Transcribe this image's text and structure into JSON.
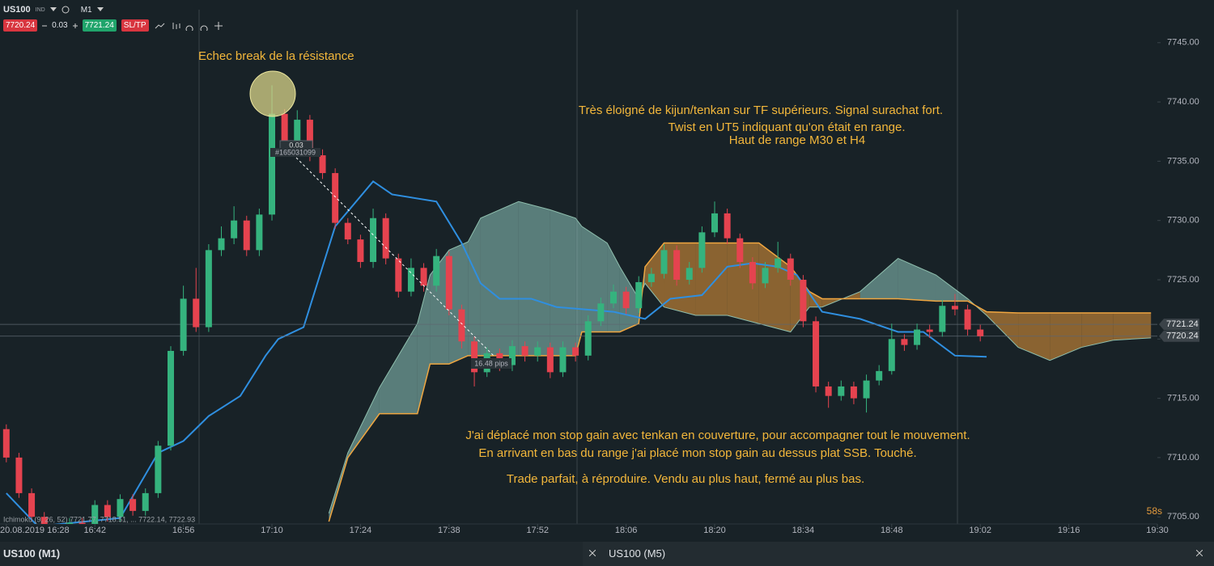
{
  "toolbar": {
    "symbol": "US100",
    "instrument_type": "IND",
    "timeframe": "M1",
    "bid": "7720.24",
    "volume": "0.03",
    "ask": "7721.24",
    "sltp": "SL/TP"
  },
  "chart_data": {
    "type": "candlestick",
    "annotations": [
      "Echec break de la résistance",
      "Très éloigné de kijun/tenkan sur TF supérieurs. Signal surachat fort.",
      "Twist en UT5 indiquant qu'on était en range.",
      "Haut de range M30 et H4",
      "J'ai déplacé mon stop gain avec tenkan en couverture, pour accompagner tout le mouvement.",
      "En arrivant en bas du range j'ai placé mon stop gain au dessus plat SSB. Touché.",
      "Trade parfait, à réproduire. Vendu au plus haut, fermé au plus bas."
    ],
    "up_color": "#35b37e",
    "down_color": "#e5434f",
    "kijun_color": "#2f8fe0",
    "span_a_color": "#8fbfae",
    "span_b_color": "#f0a640",
    "bull_cloud_color": "#8fc9c0",
    "bear_cloud_color": "#b07a35",
    "xlim": [
      "16:27",
      "19:30"
    ],
    "xticks": [
      "20.08.2019 16:28",
      "16:42",
      "16:56",
      "17:10",
      "17:24",
      "17:38",
      "17:52",
      "18:06",
      "18:20",
      "18:34",
      "18:48",
      "19:02",
      "19:16",
      "19:30"
    ],
    "ylim": [
      7704.4,
      7748.6
    ],
    "yticks": [
      {
        "value": 7705,
        "label": "7705.00"
      },
      {
        "value": 7710,
        "label": "7710.00"
      },
      {
        "value": 7715,
        "label": "7715.00"
      },
      {
        "value": 7720,
        "label": "7720.00"
      },
      {
        "value": 7725,
        "label": "7725.00"
      },
      {
        "value": 7730,
        "label": "7730.00"
      },
      {
        "value": 7735,
        "label": "7735.00"
      },
      {
        "value": 7740,
        "label": "7740.00"
      },
      {
        "value": 7745,
        "label": "7745.00"
      }
    ],
    "price_lines": [
      7721.24,
      7720.24
    ],
    "candles": [
      {
        "time": "16:28",
        "open": 7712.4,
        "high": 7712.8,
        "low": 7709.6,
        "close": 7710
      },
      {
        "time": "16:30",
        "open": 7710,
        "high": 7710.4,
        "low": 7706.6,
        "close": 7707
      },
      {
        "time": "16:32",
        "open": 7707,
        "high": 7707.4,
        "low": 7704.6,
        "close": 7705
      },
      {
        "time": "16:34",
        "open": 7705,
        "high": 7705.4,
        "low": 7703.6,
        "close": 7704
      },
      {
        "time": "16:36",
        "open": 7704,
        "high": 7704.4,
        "low": 7703.4,
        "close": 7703.8
      },
      {
        "time": "16:38",
        "open": 7703.8,
        "high": 7704.9,
        "low": 7703.4,
        "close": 7704.5
      },
      {
        "time": "16:40",
        "open": 7704.5,
        "high": 7704.9,
        "low": 7703.6,
        "close": 7704
      },
      {
        "time": "16:42",
        "open": 7704,
        "high": 7706.4,
        "low": 7703.6,
        "close": 7706
      },
      {
        "time": "16:44",
        "open": 7706,
        "high": 7706.4,
        "low": 7704.6,
        "close": 7705
      },
      {
        "time": "16:46",
        "open": 7705,
        "high": 7706.9,
        "low": 7704.6,
        "close": 7706.5
      },
      {
        "time": "16:48",
        "open": 7706.5,
        "high": 7706.9,
        "low": 7705.1,
        "close": 7705.5
      },
      {
        "time": "16:50",
        "open": 7705.5,
        "high": 7707.4,
        "low": 7705.1,
        "close": 7707
      },
      {
        "time": "16:52",
        "open": 7707,
        "high": 7711.4,
        "low": 7706.6,
        "close": 7711
      },
      {
        "time": "16:54",
        "open": 7711,
        "high": 7719.4,
        "low": 7710.6,
        "close": 7719
      },
      {
        "time": "16:56",
        "open": 7719,
        "high": 7724.5,
        "low": 7718.6,
        "close": 7723.4
      },
      {
        "time": "16:58",
        "open": 7723.4,
        "high": 7726,
        "low": 7720.6,
        "close": 7721
      },
      {
        "time": "17:00",
        "open": 7721,
        "high": 7728,
        "low": 7720.6,
        "close": 7727.5
      },
      {
        "time": "17:02",
        "open": 7727.5,
        "high": 7729.5,
        "low": 7727,
        "close": 7728.5
      },
      {
        "time": "17:04",
        "open": 7728.5,
        "high": 7731.2,
        "low": 7728,
        "close": 7730
      },
      {
        "time": "17:06",
        "open": 7730,
        "high": 7730.4,
        "low": 7727,
        "close": 7727.5
      },
      {
        "time": "17:08",
        "open": 7727.5,
        "high": 7731,
        "low": 7727,
        "close": 7730.5
      },
      {
        "time": "17:10",
        "open": 7730.5,
        "high": 7741.4,
        "low": 7730,
        "close": 7739
      },
      {
        "time": "17:12",
        "open": 7739,
        "high": 7739.4,
        "low": 7736,
        "close": 7736.5
      },
      {
        "time": "17:14",
        "open": 7736.5,
        "high": 7739.3,
        "low": 7736,
        "close": 7738.5
      },
      {
        "time": "17:16",
        "open": 7738.5,
        "high": 7738.9,
        "low": 7735,
        "close": 7735.5
      },
      {
        "time": "17:18",
        "open": 7735.5,
        "high": 7736,
        "low": 7733.5,
        "close": 7734
      },
      {
        "time": "17:20",
        "open": 7734,
        "high": 7734.4,
        "low": 7729.3,
        "close": 7729.8
      },
      {
        "time": "17:22",
        "open": 7729.8,
        "high": 7730.2,
        "low": 7728,
        "close": 7728.4
      },
      {
        "time": "17:24",
        "open": 7728.4,
        "high": 7728.8,
        "low": 7726,
        "close": 7726.5
      },
      {
        "time": "17:26",
        "open": 7726.5,
        "high": 7731,
        "low": 7726,
        "close": 7730.2
      },
      {
        "time": "17:28",
        "open": 7730.2,
        "high": 7730.6,
        "low": 7726.3,
        "close": 7726.8
      },
      {
        "time": "17:30",
        "open": 7726.8,
        "high": 7727.2,
        "low": 7723.5,
        "close": 7724
      },
      {
        "time": "17:32",
        "open": 7724,
        "high": 7726.8,
        "low": 7723.6,
        "close": 7726
      },
      {
        "time": "17:34",
        "open": 7726,
        "high": 7726.4,
        "low": 7724,
        "close": 7724.5
      },
      {
        "time": "17:36",
        "open": 7724.5,
        "high": 7727.6,
        "low": 7724,
        "close": 7727
      },
      {
        "time": "17:38",
        "open": 7727,
        "high": 7727.4,
        "low": 7722,
        "close": 7722.5
      },
      {
        "time": "17:40",
        "open": 7722.5,
        "high": 7722.9,
        "low": 7719.2,
        "close": 7719.8
      },
      {
        "time": "17:42",
        "open": 7719.8,
        "high": 7720.2,
        "low": 7716,
        "close": 7717.2
      },
      {
        "time": "17:44",
        "open": 7717.2,
        "high": 7719.3,
        "low": 7716.8,
        "close": 7718.8
      },
      {
        "time": "17:46",
        "open": 7718.8,
        "high": 7719.2,
        "low": 7717.3,
        "close": 7717.8
      },
      {
        "time": "17:48",
        "open": 7717.8,
        "high": 7719.9,
        "low": 7717.3,
        "close": 7719.4
      },
      {
        "time": "17:50",
        "open": 7719.4,
        "high": 7719.8,
        "low": 7718.1,
        "close": 7718.6
      },
      {
        "time": "17:52",
        "open": 7718.6,
        "high": 7719.8,
        "low": 7718.1,
        "close": 7719.3
      },
      {
        "time": "17:54",
        "open": 7719.3,
        "high": 7719.7,
        "low": 7716.7,
        "close": 7717.2
      },
      {
        "time": "17:56",
        "open": 7717.2,
        "high": 7719.8,
        "low": 7716.8,
        "close": 7719.3
      },
      {
        "time": "17:58",
        "open": 7719.3,
        "high": 7719.7,
        "low": 7718.1,
        "close": 7718.6
      },
      {
        "time": "18:00",
        "open": 7718.6,
        "high": 7722,
        "low": 7718.2,
        "close": 7721.5
      },
      {
        "time": "18:02",
        "open": 7721.5,
        "high": 7723.5,
        "low": 7721.1,
        "close": 7723
      },
      {
        "time": "18:04",
        "open": 7723,
        "high": 7724.6,
        "low": 7722.6,
        "close": 7724
      },
      {
        "time": "18:06",
        "open": 7724,
        "high": 7724.4,
        "low": 7722.1,
        "close": 7722.6
      },
      {
        "time": "18:08",
        "open": 7722.6,
        "high": 7725.3,
        "low": 7722.2,
        "close": 7724.8
      },
      {
        "time": "18:10",
        "open": 7724.8,
        "high": 7726,
        "low": 7724.4,
        "close": 7725.5
      },
      {
        "time": "18:12",
        "open": 7725.5,
        "high": 7728,
        "low": 7725.1,
        "close": 7727.5
      },
      {
        "time": "18:14",
        "open": 7727.5,
        "high": 7727.9,
        "low": 7724.5,
        "close": 7725
      },
      {
        "time": "18:16",
        "open": 7725,
        "high": 7726.5,
        "low": 7724.6,
        "close": 7726
      },
      {
        "time": "18:18",
        "open": 7726,
        "high": 7729.5,
        "low": 7725.6,
        "close": 7729
      },
      {
        "time": "18:20",
        "open": 7729,
        "high": 7731.6,
        "low": 7728.6,
        "close": 7730.6
      },
      {
        "time": "18:22",
        "open": 7730.6,
        "high": 7731,
        "low": 7728,
        "close": 7728.5
      },
      {
        "time": "18:24",
        "open": 7728.5,
        "high": 7728.9,
        "low": 7726,
        "close": 7726.5
      },
      {
        "time": "18:26",
        "open": 7726.5,
        "high": 7726.9,
        "low": 7724.2,
        "close": 7724.7
      },
      {
        "time": "18:28",
        "open": 7724.7,
        "high": 7726.5,
        "low": 7724.3,
        "close": 7726
      },
      {
        "time": "18:30",
        "open": 7726,
        "high": 7728.2,
        "low": 7725.6,
        "close": 7726.8
      },
      {
        "time": "18:32",
        "open": 7726.8,
        "high": 7727.2,
        "low": 7724.5,
        "close": 7725
      },
      {
        "time": "18:34",
        "open": 7725,
        "high": 7725.4,
        "low": 7721,
        "close": 7721.5
      },
      {
        "time": "18:36",
        "open": 7721.5,
        "high": 7721.9,
        "low": 7715.5,
        "close": 7716
      },
      {
        "time": "18:38",
        "open": 7716,
        "high": 7716.4,
        "low": 7714.2,
        "close": 7715.2
      },
      {
        "time": "18:40",
        "open": 7715.2,
        "high": 7716.5,
        "low": 7714.8,
        "close": 7716
      },
      {
        "time": "18:42",
        "open": 7716,
        "high": 7716.4,
        "low": 7714.5,
        "close": 7715
      },
      {
        "time": "18:44",
        "open": 7715,
        "high": 7717,
        "low": 7713.8,
        "close": 7716.5
      },
      {
        "time": "18:46",
        "open": 7716.5,
        "high": 7717.8,
        "low": 7716.1,
        "close": 7717.3
      },
      {
        "time": "18:48",
        "open": 7717.3,
        "high": 7721.3,
        "low": 7717,
        "close": 7720
      },
      {
        "time": "18:50",
        "open": 7720,
        "high": 7720.4,
        "low": 7719,
        "close": 7719.5
      },
      {
        "time": "18:52",
        "open": 7719.5,
        "high": 7721.3,
        "low": 7719.1,
        "close": 7720.8
      },
      {
        "time": "18:54",
        "open": 7720.8,
        "high": 7721.2,
        "low": 7720.1,
        "close": 7720.6
      },
      {
        "time": "18:56",
        "open": 7720.6,
        "high": 7723.3,
        "low": 7720.2,
        "close": 7722.8
      },
      {
        "time": "18:58",
        "open": 7722.8,
        "high": 7723.8,
        "low": 7722,
        "close": 7722.5
      },
      {
        "time": "19:00",
        "open": 7722.5,
        "high": 7722.9,
        "low": 7720.3,
        "close": 7720.8
      },
      {
        "time": "19:02",
        "open": 7720.8,
        "high": 7721.2,
        "low": 7719.8,
        "close": 7720.24
      }
    ],
    "kijun": {
      "x": [
        "16:28",
        "16:33",
        "16:46",
        "16:52",
        "16:56",
        "17:00",
        "17:05",
        "17:09",
        "17:11",
        "17:15",
        "17:18",
        "17:20",
        "17:26",
        "17:29",
        "17:36",
        "17:40",
        "17:43",
        "17:46",
        "17:51",
        "17:55",
        "18:04",
        "18:09",
        "18:13",
        "18:18",
        "18:22",
        "18:26",
        "18:30",
        "18:33",
        "18:37",
        "18:43",
        "18:49",
        "18:53",
        "18:58",
        "19:03"
      ],
      "values": [
        7707,
        7704.2,
        7704.9,
        7710.4,
        7711.4,
        7713.5,
        7715.2,
        7718.6,
        7720,
        7721,
        7726.1,
        7729.5,
        7733.3,
        7732.2,
        7731.6,
        7728.1,
        7724.7,
        7723.4,
        7723.4,
        7722.7,
        7722.3,
        7721.7,
        7723.4,
        7723.7,
        7726.1,
        7726.4,
        7726.1,
        7725.4,
        7722.3,
        7721.7,
        7720.6,
        7720.6,
        7718.6,
        7718.5
      ]
    },
    "cloud": {
      "x": [
        "17:19",
        "17:22",
        "17:27",
        "17:33",
        "17:35",
        "17:38",
        "17:41",
        "17:43",
        "17:49",
        "17:54",
        "17:58",
        "17:59",
        "18:03",
        "18:05",
        "18:08",
        "18:09",
        "18:12",
        "18:17",
        "18:22",
        "18:27",
        "18:32",
        "18:35",
        "18:37",
        "18:43",
        "18:49",
        "18:55",
        "19:00",
        "19:03",
        "19:08",
        "19:13",
        "19:18",
        "19:23",
        "19:29"
      ],
      "span_a": [
        7705.3,
        7710.4,
        7715.9,
        7721.3,
        7725.4,
        7727.5,
        7728.2,
        7730.2,
        7731.6,
        7730.9,
        7730.2,
        7729.5,
        7728.1,
        7726.1,
        7723.4,
        7724.7,
        7722.7,
        7722,
        7722,
        7721.3,
        7720.6,
        7722.7,
        7722.7,
        7724,
        7726.8,
        7725.4,
        7723.4,
        7722,
        7719.3,
        7718.2,
        7719.3,
        7719.9,
        7720.1
      ],
      "span_b": [
        7704.6,
        7710,
        7713.7,
        7713.7,
        7717.9,
        7717.9,
        7718.6,
        7718.6,
        7718.6,
        7718.6,
        7718.6,
        7720.6,
        7720.6,
        7720.6,
        7721.3,
        7726.1,
        7728.1,
        7728.1,
        7728.1,
        7728.1,
        7726.1,
        7724,
        7723.4,
        7723.4,
        7723.4,
        7723.2,
        7723.2,
        7722.3,
        7722.2,
        7722.2,
        7722.2,
        7722.2,
        7722.2
      ]
    },
    "order": {
      "volume": "0.03",
      "ticket": "#165031099"
    },
    "measure": "16.48 pips",
    "indicator": "Ichimoku (9, 26, 52) 7721.77, 7718.51, ... 7722.14, 7722.93",
    "timer": "58s"
  },
  "bottom": {
    "chart": "US100 (M1)",
    "tab": "US100 (M5)"
  }
}
